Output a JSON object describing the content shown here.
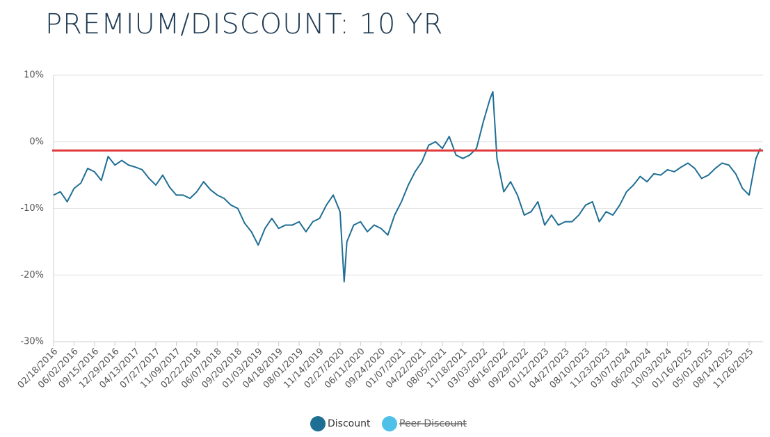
{
  "chart_data": {
    "type": "line",
    "title": "PREMIUM/DISCOUNT: 10 YR",
    "x": [
      "02/18/2016",
      "03/24/2016",
      "04/28/2016",
      "06/02/2016",
      "07/07/2016",
      "08/11/2016",
      "09/15/2016",
      "10/20/2016",
      "11/24/2016",
      "12/29/2016",
      "02/02/2017",
      "03/09/2017",
      "04/13/2017",
      "05/18/2017",
      "06/22/2017",
      "07/27/2017",
      "08/31/2017",
      "10/05/2017",
      "11/09/2017",
      "12/14/2017",
      "01/18/2018",
      "02/22/2018",
      "03/29/2018",
      "05/03/2018",
      "06/07/2018",
      "07/12/2018",
      "08/16/2018",
      "09/20/2018",
      "10/25/2018",
      "11/29/2018",
      "01/03/2019",
      "02/07/2019",
      "03/14/2019",
      "04/18/2019",
      "05/23/2019",
      "06/27/2019",
      "08/01/2019",
      "09/05/2019",
      "10/10/2019",
      "11/14/2019",
      "12/19/2019",
      "01/23/2020",
      "02/27/2020",
      "03/19/2020",
      "04/02/2020",
      "05/07/2020",
      "06/11/2020",
      "07/16/2020",
      "08/20/2020",
      "09/24/2020",
      "10/29/2020",
      "12/03/2020",
      "01/07/2021",
      "02/11/2021",
      "03/18/2021",
      "04/22/2021",
      "05/27/2021",
      "07/01/2021",
      "08/05/2021",
      "09/09/2021",
      "10/14/2021",
      "11/18/2021",
      "12/23/2021",
      "01/27/2022",
      "03/03/2022",
      "04/07/2022",
      "04/21/2022",
      "05/12/2022",
      "06/16/2022",
      "07/21/2022",
      "08/25/2022",
      "09/29/2022",
      "11/03/2022",
      "12/08/2022",
      "01/12/2023",
      "02/16/2023",
      "03/23/2023",
      "04/27/2023",
      "06/01/2023",
      "07/06/2023",
      "08/10/2023",
      "09/14/2023",
      "10/19/2023",
      "11/23/2023",
      "12/28/2023",
      "02/01/2024",
      "03/07/2024",
      "04/11/2024",
      "05/16/2024",
      "06/20/2024",
      "07/25/2024",
      "08/29/2024",
      "10/03/2024",
      "11/07/2024",
      "12/12/2024",
      "01/16/2025",
      "02/20/2025",
      "03/27/2025",
      "05/01/2025",
      "06/05/2025",
      "07/10/2025",
      "08/14/2025",
      "09/18/2025",
      "10/23/2025",
      "11/26/2025",
      "12/31/2025",
      "01/22/2026"
    ],
    "series": [
      {
        "name": "Discount",
        "color": "#1f6e94",
        "values": [
          -8,
          -7.5,
          -9,
          -7,
          -6.2,
          -4,
          -4.5,
          -5.8,
          -2.2,
          -3.5,
          -2.8,
          -3.5,
          -3.8,
          -4.2,
          -5.5,
          -6.5,
          -5,
          -6.8,
          -8,
          -8,
          -8.5,
          -7.5,
          -6,
          -7.2,
          -8,
          -8.5,
          -9.5,
          -10,
          -12.2,
          -13.5,
          -15.5,
          -13,
          -11.5,
          -13,
          -12.5,
          -12.5,
          -12,
          -13.5,
          -12,
          -11.5,
          -9.5,
          -8,
          -10.5,
          -21,
          -15,
          -12.5,
          -12,
          -13.5,
          -12.5,
          -13,
          -14,
          -11,
          -9,
          -6.5,
          -4.5,
          -3,
          -0.5,
          0,
          -1,
          0.8,
          -2,
          -2.5,
          -2,
          -1,
          3,
          6.5,
          7.5,
          -2.5,
          -7.5,
          -6,
          -8,
          -11,
          -10.5,
          -9,
          -12.5,
          -11,
          -12.5,
          -12,
          -12,
          -11,
          -9.5,
          -9,
          -12,
          -10.5,
          -11,
          -9.5,
          -7.5,
          -6.5,
          -5.2,
          -6,
          -4.8,
          -5,
          -4.2,
          -4.5,
          -3.8,
          -3.2,
          -4,
          -5.5,
          -5,
          -4,
          -3.2,
          -3.5,
          -4.8,
          -7,
          -8,
          -2.5,
          -1
        ]
      },
      {
        "name": "Peer Discount",
        "color": "#4fc1e9",
        "hidden": true
      }
    ],
    "reference_lines": [
      {
        "value": -1.3,
        "color": "#e03a3e"
      }
    ],
    "xlim": [
      "02/18/2016",
      "01/22/2026"
    ],
    "xticks": [
      "02/18/2016",
      "06/02/2016",
      "09/15/2016",
      "12/29/2016",
      "04/13/2017",
      "07/27/2017",
      "11/09/2017",
      "02/22/2018",
      "06/07/2018",
      "09/20/2018",
      "01/03/2019",
      "04/18/2019",
      "08/01/2019",
      "11/14/2019",
      "02/27/2020",
      "06/11/2020",
      "09/24/2020",
      "01/07/2021",
      "04/22/2021",
      "08/05/2021",
      "11/18/2021",
      "03/03/2022",
      "06/16/2022",
      "09/29/2022",
      "01/12/2023",
      "04/27/2023",
      "08/10/2023",
      "11/23/2023",
      "03/07/2024",
      "06/20/2024",
      "10/03/2024",
      "01/16/2025",
      "05/01/2025",
      "08/14/2025",
      "11/26/2025"
    ],
    "ylim": [
      -30,
      10
    ],
    "yticks": [
      {
        "value": 10,
        "label": "10%"
      },
      {
        "value": 0,
        "label": "0%"
      },
      {
        "value": -10,
        "label": "-10%"
      },
      {
        "value": -20,
        "label": "-20%"
      },
      {
        "value": -30,
        "label": "-30%"
      }
    ],
    "grid": true
  }
}
